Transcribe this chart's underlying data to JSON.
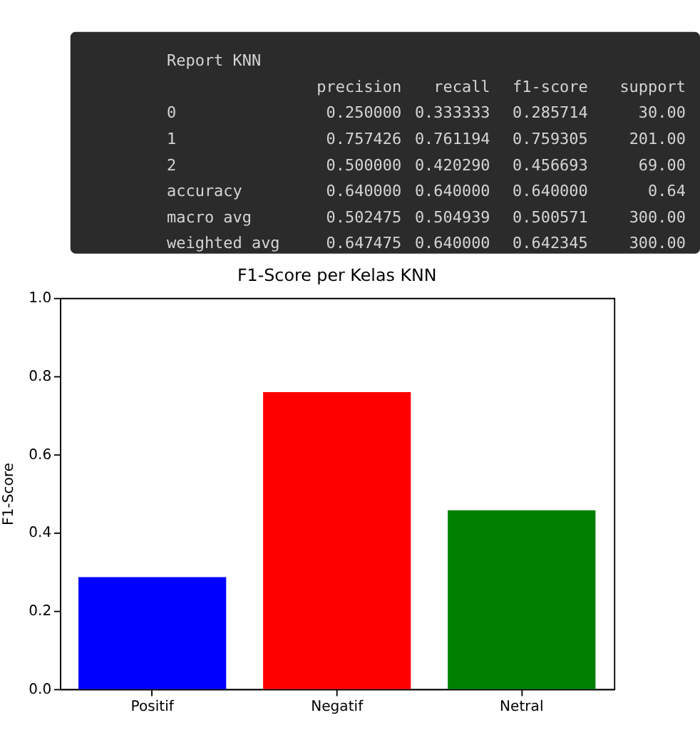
{
  "chart_data": {
    "type": "bar",
    "title": "F1-Score per Kelas KNN",
    "ylabel": "F1-Score",
    "categories": [
      "Positif",
      "Negatif",
      "Netral"
    ],
    "values": [
      0.286,
      0.759,
      0.457
    ],
    "colors": [
      "#0000ff",
      "#ff0000",
      "#008000"
    ],
    "ylim": [
      0,
      1.0
    ],
    "yticks": [
      {
        "value": 0,
        "label": "0.0"
      },
      0.2,
      0.4,
      0.6,
      0.8,
      {
        "value": 1.0,
        "label": "1.0"
      }
    ],
    "grid": false,
    "annotations": [
      "Report KNN",
      "precision  recall  f1-score  support",
      "0  0.250000  0.333333  0.285714  30.00",
      "1  0.757426  0.761194  0.759305  201.00",
      "2  0.500000  0.420290  0.456693  69.00",
      "accuracy  0.640000  0.640000  0.640000  0.64",
      "macro avg  0.502475  0.504939  0.500571  300.00",
      "weighted avg  0.647475  0.640000  0.642345  300.00"
    ]
  }
}
